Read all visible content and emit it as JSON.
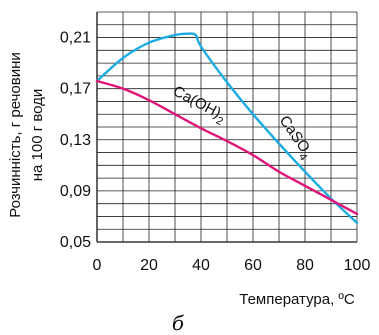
{
  "chart_data": {
    "type": "line",
    "xlabel": "Температура, ºC",
    "ylabel_line1": "Розчинність, г речовини",
    "ylabel_line2": "на 100 г води",
    "panel_label": "б",
    "xlim": [
      0,
      100
    ],
    "ylim": [
      0.05,
      0.23
    ],
    "x_ticks": [
      0,
      20,
      40,
      60,
      80,
      100
    ],
    "x_tick_labels": [
      "0",
      "20",
      "40",
      "60",
      "80",
      "100"
    ],
    "y_ticks": [
      0.05,
      0.09,
      0.13,
      0.17,
      0.21
    ],
    "y_tick_labels": [
      "0,05",
      "0,09",
      "0,13",
      "0,17",
      "0,21"
    ],
    "grid": true,
    "series": [
      {
        "name_main": "CaSO",
        "name_sub": "4",
        "color": "#1cace4",
        "x": [
          0,
          10,
          20,
          30,
          35,
          38,
          40,
          50,
          60,
          70,
          80,
          90,
          100
        ],
        "y": [
          0.176,
          0.194,
          0.206,
          0.212,
          0.213,
          0.212,
          0.203,
          0.175,
          0.15,
          0.127,
          0.105,
          0.084,
          0.065
        ]
      },
      {
        "name_main": "Ca(OH)",
        "name_sub": "2",
        "color": "#e0157a",
        "x": [
          0,
          10,
          20,
          30,
          40,
          50,
          60,
          70,
          80,
          90,
          100
        ],
        "y": [
          0.176,
          0.17,
          0.161,
          0.15,
          0.139,
          0.129,
          0.118,
          0.105,
          0.094,
          0.083,
          0.072
        ]
      }
    ]
  }
}
